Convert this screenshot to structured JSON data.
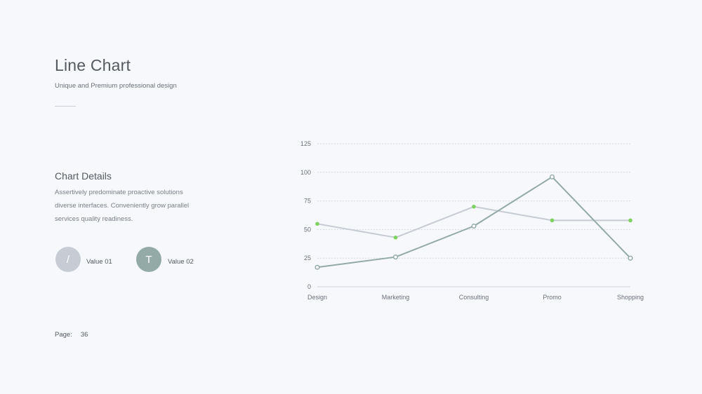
{
  "header": {
    "title": "Line Chart",
    "subtitle": "Unique and Premium professional design"
  },
  "details": {
    "heading": "Chart Details",
    "body": "Assertively predominate proactive solutions diverse interfaces. Conveniently grow parallel services quality readiness."
  },
  "legend": [
    {
      "glyph": "/",
      "label": "Value 01",
      "color": "#c7cbd3"
    },
    {
      "glyph": "T",
      "label": "Value 02",
      "color": "#93aaa6"
    }
  ],
  "footer": {
    "page_label": "Page:",
    "page_number": "36"
  },
  "chart_data": {
    "type": "line",
    "categories": [
      "Design",
      "Marketing",
      "Consulting",
      "Promo",
      "Shopping"
    ],
    "ylim": [
      0,
      125
    ],
    "yticks": [
      0,
      25,
      50,
      75,
      100,
      125
    ],
    "grid": true,
    "series": [
      {
        "values": [
          55,
          43,
          70,
          58,
          58
        ],
        "color": "#c7cbd3",
        "marker_color": "#7ed35e"
      },
      {
        "values": [
          17,
          26,
          53,
          96,
          25
        ],
        "color": "#93aaa6",
        "marker_color": "#ffffff"
      }
    ]
  }
}
